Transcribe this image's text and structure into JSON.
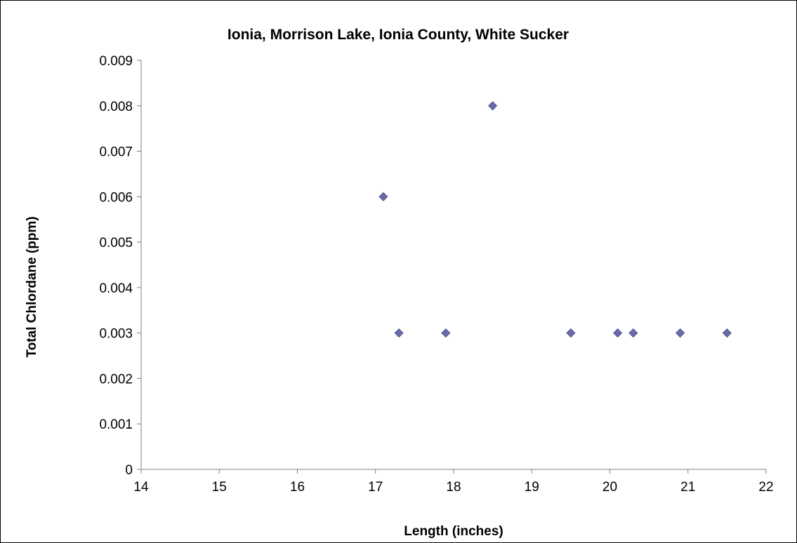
{
  "chart_data": {
    "type": "scatter",
    "title": "Ionia, Morrison Lake, Ionia County, White Sucker",
    "xlabel": "Length (inches)",
    "ylabel": "Total Chlordane (ppm)",
    "xlim": [
      14,
      22
    ],
    "ylim": [
      0,
      0.009
    ],
    "x_ticks": [
      14,
      15,
      16,
      17,
      18,
      19,
      20,
      21,
      22
    ],
    "y_ticks": [
      0,
      0.001,
      0.002,
      0.003,
      0.004,
      0.005,
      0.006,
      0.007,
      0.008,
      0.009
    ],
    "x_tick_labels": [
      "14",
      "15",
      "16",
      "17",
      "18",
      "19",
      "20",
      "21",
      "22"
    ],
    "y_tick_labels": [
      "0",
      "0.001",
      "0.002",
      "0.003",
      "0.004",
      "0.005",
      "0.006",
      "0.007",
      "0.008",
      "0.009"
    ],
    "grid": false,
    "legend": "none",
    "marker": "diamond",
    "marker_color": "#6A6AA8",
    "series": [
      {
        "x": [
          17.1,
          17.3,
          17.9,
          18.5,
          19.5,
          20.1,
          20.3,
          20.9,
          21.5
        ],
        "y": [
          0.006,
          0.003,
          0.003,
          0.008,
          0.003,
          0.003,
          0.003,
          0.003,
          0.003
        ]
      }
    ]
  }
}
